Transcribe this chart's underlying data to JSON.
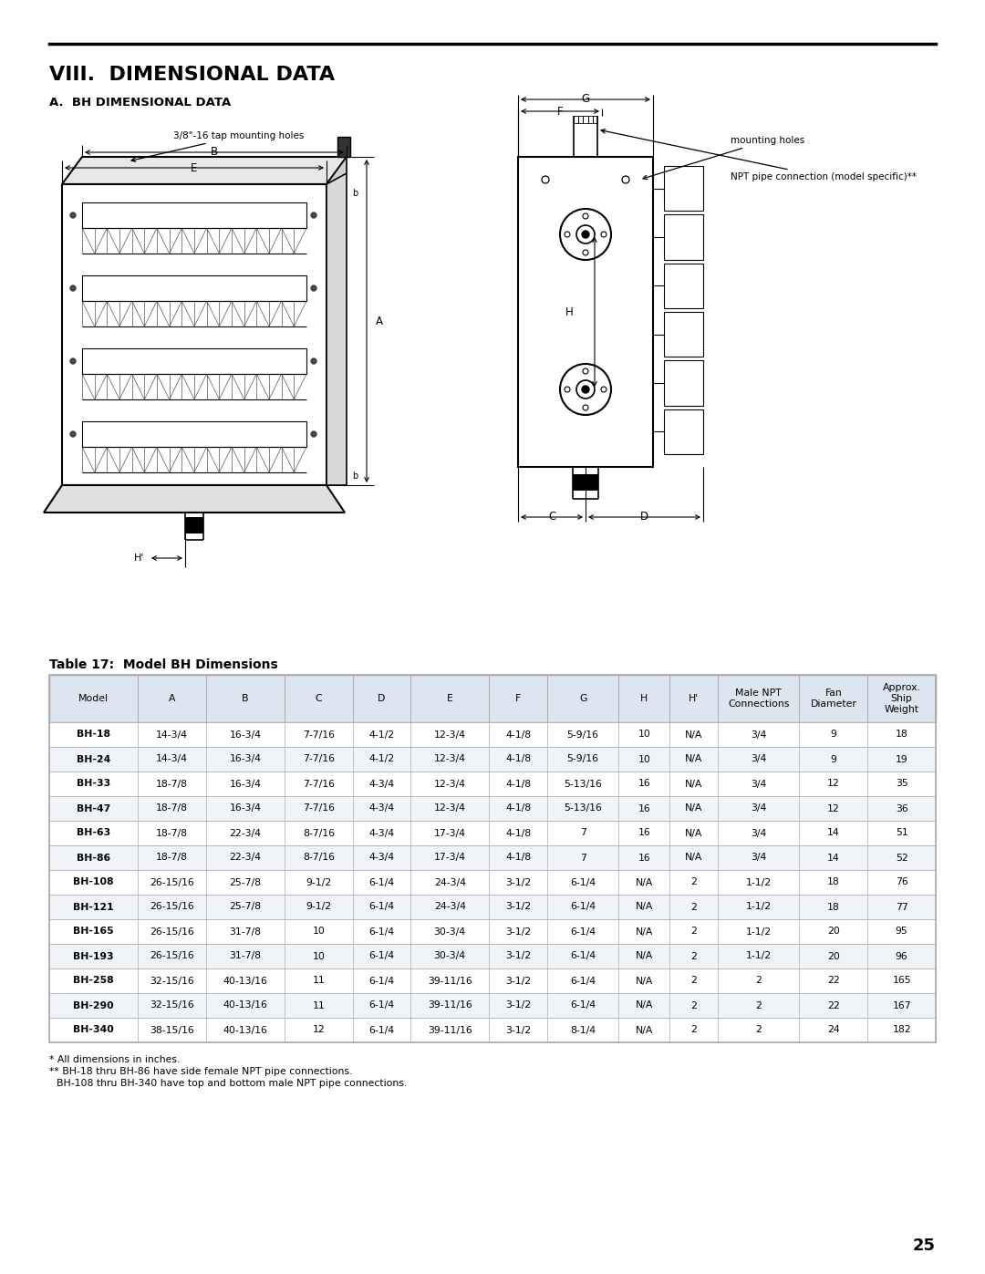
{
  "title": "VIII.  DIMENSIONAL DATA",
  "subtitle": "A.  BH DIMENSIONAL DATA",
  "table_title": "Table 17:  Model BH Dimensions",
  "page_number": "25",
  "footnote1": "* All dimensions in inches.",
  "footnote2": "** BH-18 thru BH-86 have side female NPT pipe connections.",
  "footnote3": "   BH-108 thru BH-340 have top and bottom male NPT pipe connections.",
  "col_headers": [
    "Model",
    "A",
    "B",
    "C",
    "D",
    "E",
    "F",
    "G",
    "H",
    "H'",
    "Male NPT\nConnections",
    "Fan\nDiameter",
    "Approx.\nShip\nWeight"
  ],
  "rows": [
    [
      "BH-18",
      "14-3/4",
      "16-3/4",
      "7-7/16",
      "4-1/2",
      "12-3/4",
      "4-1/8",
      "5-9/16",
      "10",
      "N/A",
      "3/4",
      "9",
      "18"
    ],
    [
      "BH-24",
      "14-3/4",
      "16-3/4",
      "7-7/16",
      "4-1/2",
      "12-3/4",
      "4-1/8",
      "5-9/16",
      "10",
      "N/A",
      "3/4",
      "9",
      "19"
    ],
    [
      "BH-33",
      "18-7/8",
      "16-3/4",
      "7-7/16",
      "4-3/4",
      "12-3/4",
      "4-1/8",
      "5-13/16",
      "16",
      "N/A",
      "3/4",
      "12",
      "35"
    ],
    [
      "BH-47",
      "18-7/8",
      "16-3/4",
      "7-7/16",
      "4-3/4",
      "12-3/4",
      "4-1/8",
      "5-13/16",
      "16",
      "N/A",
      "3/4",
      "12",
      "36"
    ],
    [
      "BH-63",
      "18-7/8",
      "22-3/4",
      "8-7/16",
      "4-3/4",
      "17-3/4",
      "4-1/8",
      "7",
      "16",
      "N/A",
      "3/4",
      "14",
      "51"
    ],
    [
      "BH-86",
      "18-7/8",
      "22-3/4",
      "8-7/16",
      "4-3/4",
      "17-3/4",
      "4-1/8",
      "7",
      "16",
      "N/A",
      "3/4",
      "14",
      "52"
    ],
    [
      "BH-108",
      "26-15/16",
      "25-7/8",
      "9-1/2",
      "6-1/4",
      "24-3/4",
      "3-1/2",
      "6-1/4",
      "N/A",
      "2",
      "1-1/2",
      "18",
      "76"
    ],
    [
      "BH-121",
      "26-15/16",
      "25-7/8",
      "9-1/2",
      "6-1/4",
      "24-3/4",
      "3-1/2",
      "6-1/4",
      "N/A",
      "2",
      "1-1/2",
      "18",
      "77"
    ],
    [
      "BH-165",
      "26-15/16",
      "31-7/8",
      "10",
      "6-1/4",
      "30-3/4",
      "3-1/2",
      "6-1/4",
      "N/A",
      "2",
      "1-1/2",
      "20",
      "95"
    ],
    [
      "BH-193",
      "26-15/16",
      "31-7/8",
      "10",
      "6-1/4",
      "30-3/4",
      "3-1/2",
      "6-1/4",
      "N/A",
      "2",
      "1-1/2",
      "20",
      "96"
    ],
    [
      "BH-258",
      "32-15/16",
      "40-13/16",
      "11",
      "6-1/4",
      "39-11/16",
      "3-1/2",
      "6-1/4",
      "N/A",
      "2",
      "2",
      "22",
      "165"
    ],
    [
      "BH-290",
      "32-15/16",
      "40-13/16",
      "11",
      "6-1/4",
      "39-11/16",
      "3-1/2",
      "6-1/4",
      "N/A",
      "2",
      "2",
      "22",
      "167"
    ],
    [
      "BH-340",
      "38-15/16",
      "40-13/16",
      "12",
      "6-1/4",
      "39-11/16",
      "3-1/2",
      "8-1/4",
      "N/A",
      "2",
      "2",
      "24",
      "182"
    ]
  ],
  "header_bg": "#dce6f1",
  "row_bg_odd": "#ffffff",
  "row_bg_even": "#f0f4f8",
  "border_color": "#aaaaaa",
  "background_color": "#ffffff",
  "ann_tap": "3/8\"-16 tap mounting holes",
  "ann_mount": "mounting holes",
  "ann_npt": "NPT pipe connection (model specific)**"
}
